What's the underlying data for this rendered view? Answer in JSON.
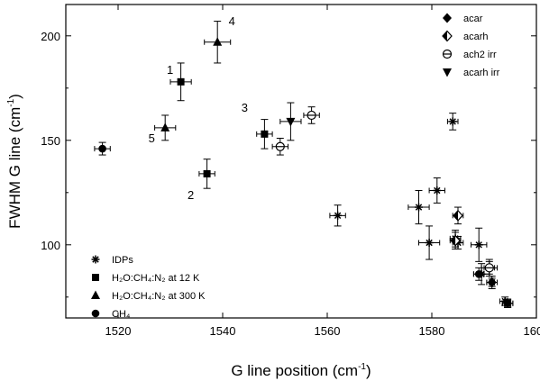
{
  "chart_data": {
    "type": "scatter",
    "xlabel": "G line position (cm",
    "xlabel_sup": "-1",
    "xlabel_end": ")",
    "ylabel": "FWHM G line (cm",
    "ylabel_sup": "-1",
    "ylabel_end": ")",
    "xlim": [
      1510,
      1600
    ],
    "ylim": [
      65,
      215
    ],
    "xticks": [
      1520,
      1540,
      1560,
      1580,
      1600
    ],
    "yticks": [
      100,
      150,
      200
    ],
    "legend_bottom_left": [
      {
        "label": "IDPs",
        "marker": "star"
      },
      {
        "label": "H₂O:CH₄:N₂ at 12 K",
        "marker": "square"
      },
      {
        "label": "H₂O:CH₄:N₂ at 300 K",
        "marker": "triangle-up"
      },
      {
        "label": "CH₄",
        "marker": "circle"
      }
    ],
    "legend_top_right": [
      {
        "label": "acar",
        "marker": "diamond-filled"
      },
      {
        "label": "acarh",
        "marker": "diamond-half"
      },
      {
        "label": "ach2 irr",
        "marker": "circle-bar"
      },
      {
        "label": "acarh irr",
        "marker": "triangle-down"
      }
    ],
    "series": [
      {
        "name": "IDPs",
        "marker": "star",
        "points": [
          {
            "x": 1562,
            "y": 114,
            "xerr": 1.5,
            "yerr": 5
          },
          {
            "x": 1577.5,
            "y": 118,
            "xerr": 2,
            "yerr": 8
          },
          {
            "x": 1579.5,
            "y": 101,
            "xerr": 2,
            "yerr": 8
          },
          {
            "x": 1581,
            "y": 126,
            "xerr": 1.5,
            "yerr": 6
          },
          {
            "x": 1584,
            "y": 159,
            "xerr": 1,
            "yerr": 4
          },
          {
            "x": 1584.5,
            "y": 103,
            "xerr": 1,
            "yerr": 4
          },
          {
            "x": 1585,
            "y": 101,
            "xerr": 1,
            "yerr": 3
          },
          {
            "x": 1589,
            "y": 100,
            "xerr": 1.5,
            "yerr": 8
          },
          {
            "x": 1589.5,
            "y": 86,
            "xerr": 1.5,
            "yerr": 5
          },
          {
            "x": 1591,
            "y": 89,
            "xerr": 1.5,
            "yerr": 4
          },
          {
            "x": 1591.5,
            "y": 82,
            "xerr": 1,
            "yerr": 3
          },
          {
            "x": 1594,
            "y": 73,
            "xerr": 1,
            "yerr": 2
          },
          {
            "x": 1594.5,
            "y": 72,
            "xerr": 1,
            "yerr": 2
          }
        ]
      },
      {
        "name": "H₂O:CH₄:N₂ at 12 K",
        "marker": "square",
        "points": [
          {
            "x": 1532,
            "y": 178,
            "xerr": 2,
            "yerr": 9,
            "label": "1"
          },
          {
            "x": 1537,
            "y": 134,
            "xerr": 1.5,
            "yerr": 7,
            "label": "2"
          },
          {
            "x": 1548,
            "y": 153,
            "xerr": 1.5,
            "yerr": 7,
            "label": "3"
          },
          {
            "x": 1594.5,
            "y": 72,
            "xerr": 1,
            "yerr": 2
          }
        ]
      },
      {
        "name": "H₂O:CH₄:N₂ at 300 K",
        "marker": "triangle-up",
        "points": [
          {
            "x": 1539,
            "y": 197,
            "xerr": 2.5,
            "yerr": 10,
            "label": "4"
          },
          {
            "x": 1529,
            "y": 156,
            "xerr": 2,
            "yerr": 6,
            "label": "5"
          }
        ]
      },
      {
        "name": "CH₄",
        "marker": "circle",
        "points": [
          {
            "x": 1517,
            "y": 146,
            "xerr": 1.5,
            "yerr": 3
          },
          {
            "x": 1589,
            "y": 86,
            "xerr": 1,
            "yerr": 3
          }
        ]
      },
      {
        "name": "acar",
        "marker": "diamond-filled",
        "points": [
          {
            "x": 1591.5,
            "y": 82,
            "xerr": 1,
            "yerr": 2
          }
        ]
      },
      {
        "name": "acarh",
        "marker": "diamond-half",
        "points": [
          {
            "x": 1585,
            "y": 114,
            "xerr": 1,
            "yerr": 4
          },
          {
            "x": 1584.5,
            "y": 102,
            "xerr": 1,
            "yerr": 4
          }
        ]
      },
      {
        "name": "ach2 irr",
        "marker": "circle-bar",
        "points": [
          {
            "x": 1551,
            "y": 147,
            "xerr": 1.5,
            "yerr": 4
          },
          {
            "x": 1557,
            "y": 162,
            "xerr": 1.5,
            "yerr": 4
          },
          {
            "x": 1591,
            "y": 89,
            "xerr": 1,
            "yerr": 3
          }
        ]
      },
      {
        "name": "acarh irr",
        "marker": "triangle-down",
        "points": [
          {
            "x": 1553,
            "y": 159,
            "xerr": 2,
            "yerr": 9
          }
        ]
      }
    ]
  }
}
